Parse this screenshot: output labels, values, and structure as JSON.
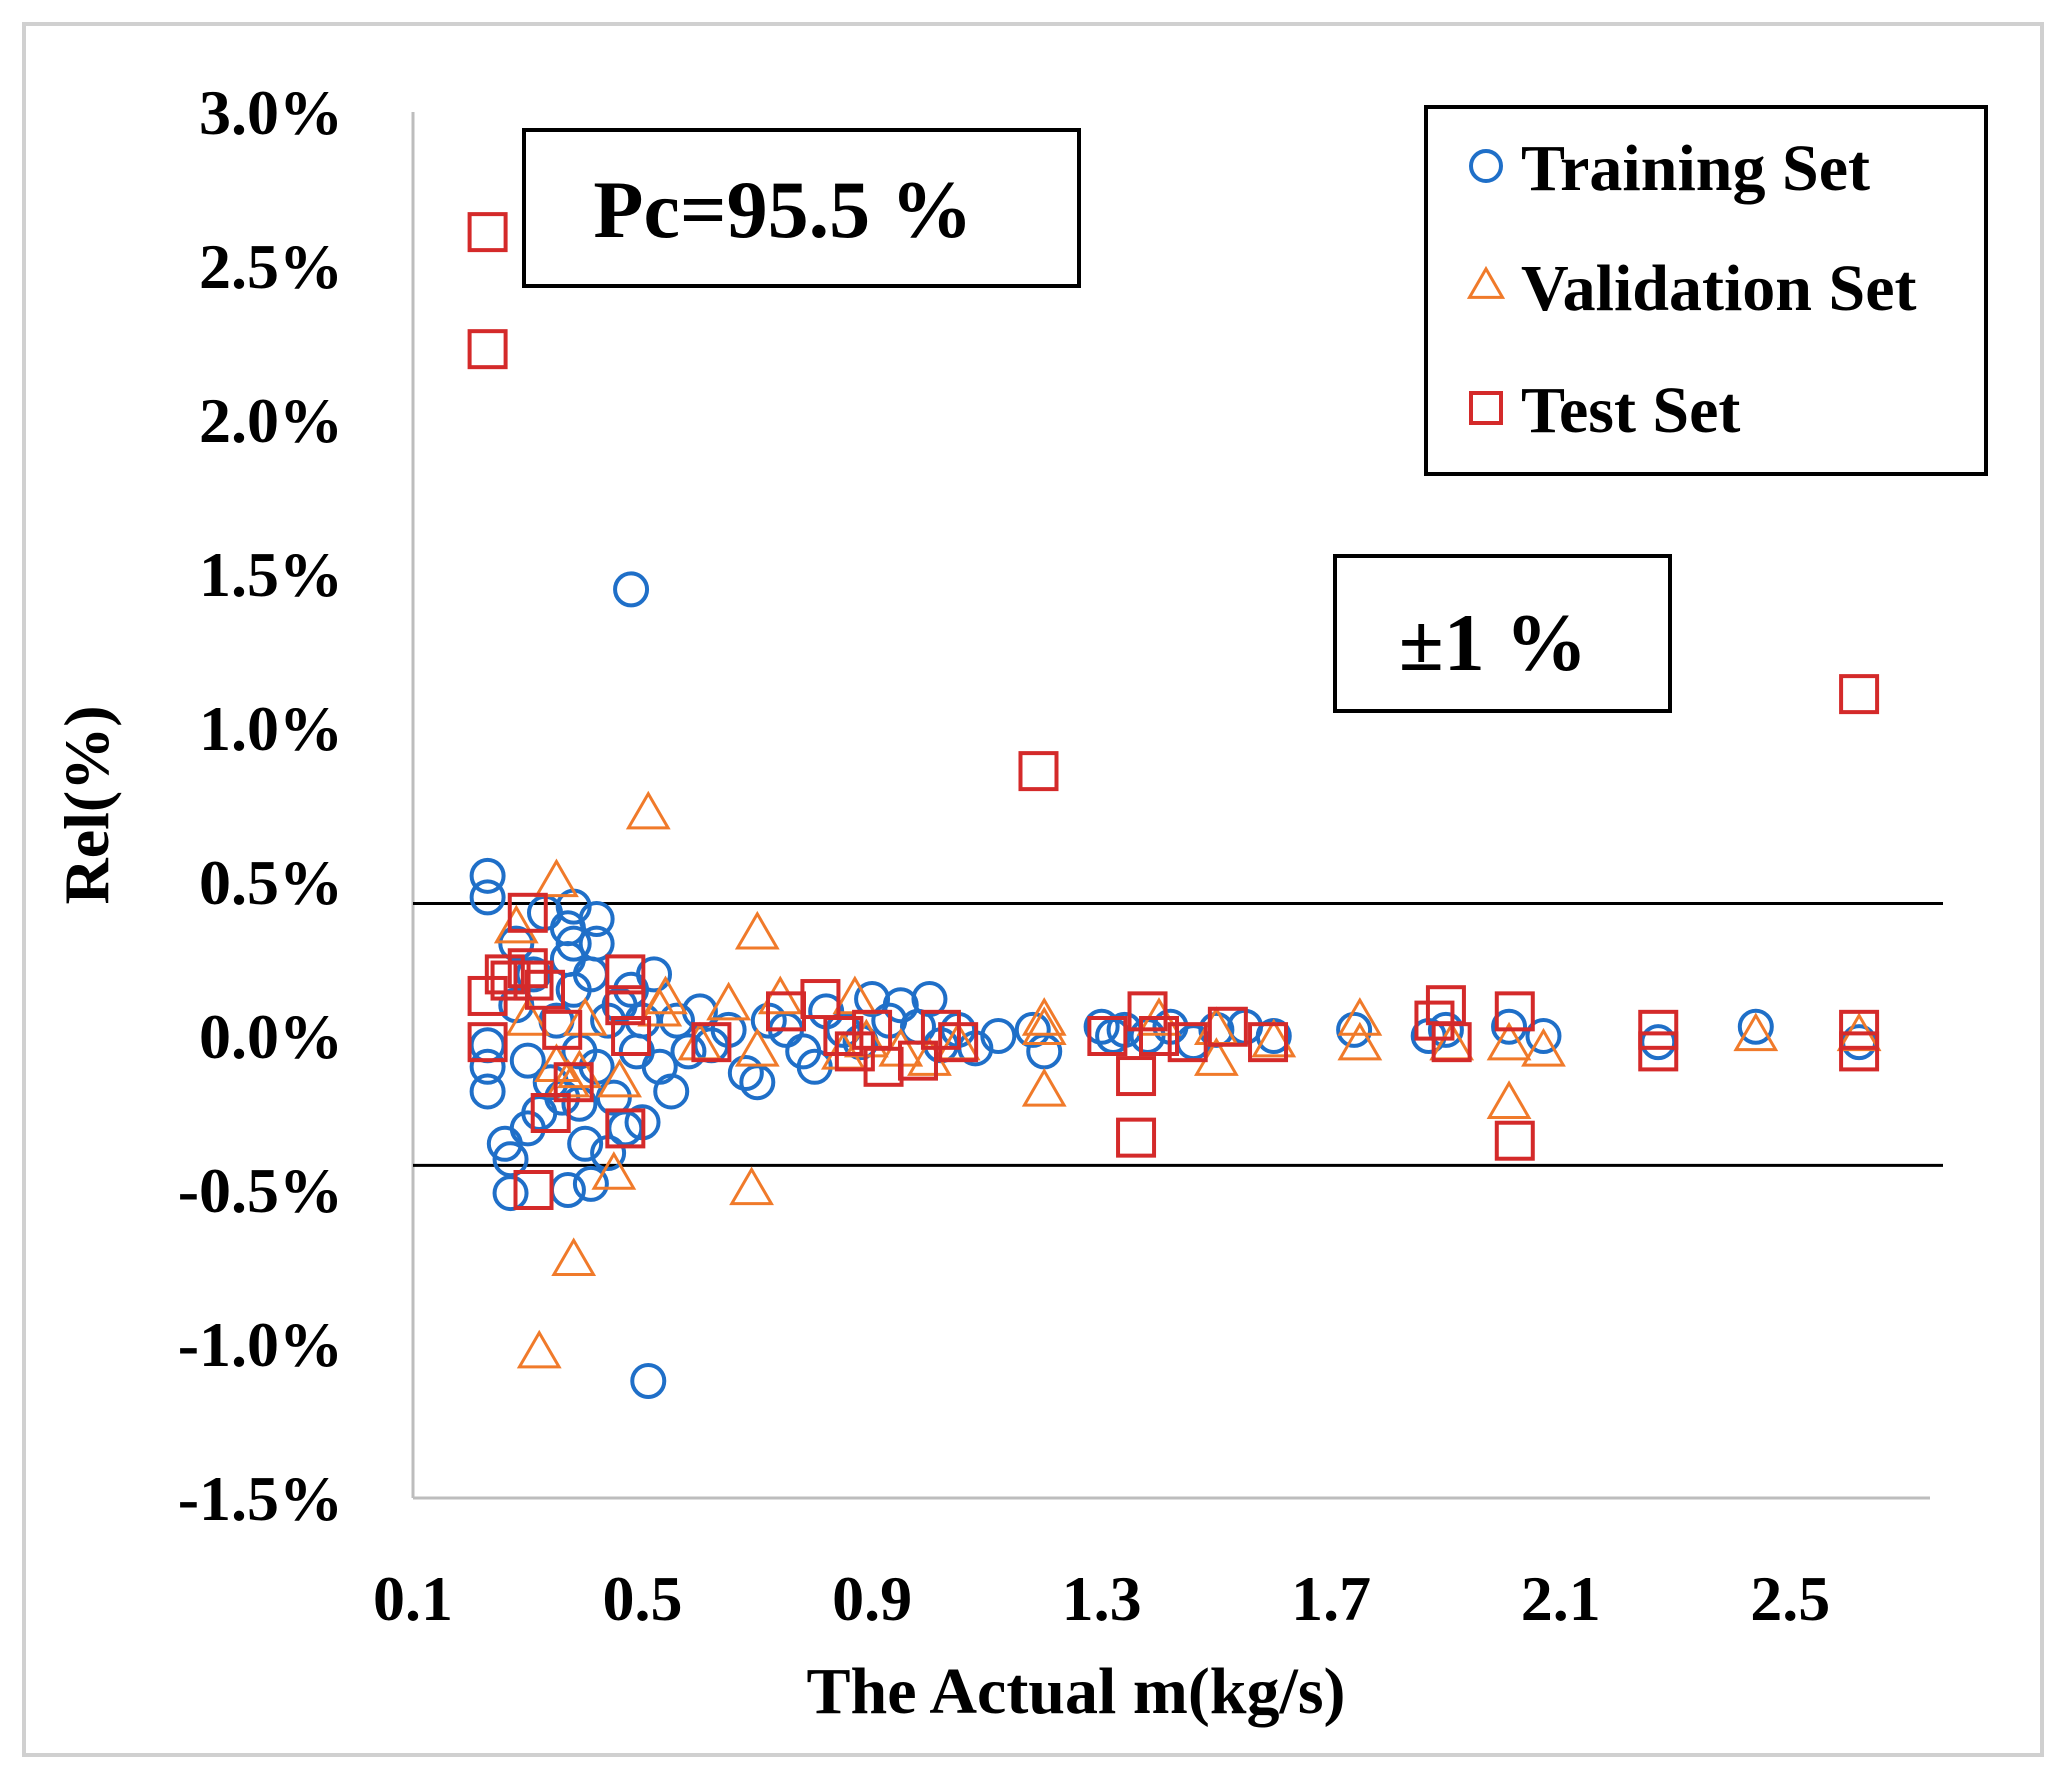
{
  "chart_data": {
    "type": "scatter",
    "ylabel": "Rel(%)",
    "xlabel": "The Actual m(kg/s)",
    "xlim": [
      0.1,
      2.7
    ],
    "ylim": [
      -1.5,
      3.0
    ],
    "x_ticks": [
      0.1,
      0.5,
      0.9,
      1.3,
      1.7,
      2.1,
      2.5
    ],
    "x_tick_labels": [
      "0.1",
      "0.5",
      "0.9",
      "1.3",
      "1.7",
      "2.1",
      "2.5"
    ],
    "y_ticks": [
      3.0,
      2.5,
      2.0,
      1.5,
      1.0,
      0.5,
      0.0,
      -0.5,
      -1.0,
      -1.5
    ],
    "y_tick_labels": [
      "3.0%",
      "2.5%",
      "2.0%",
      "1.5%",
      "1.0%",
      "0.5%",
      "0.0%",
      "-0.5%",
      "-1.0%",
      "-1.5%"
    ],
    "grid": false,
    "legend_position": "top-right",
    "reference_lines": [
      0.43,
      -0.42
    ],
    "annotations": {
      "pc": "Pc=95.5 %",
      "band": "±1 %"
    },
    "series": [
      {
        "name": "Training Set",
        "marker": "circle",
        "color": "#1f6fc8",
        "points": [
          [
            0.23,
            0.52
          ],
          [
            0.23,
            0.45
          ],
          [
            0.23,
            -0.03
          ],
          [
            0.23,
            -0.1
          ],
          [
            0.23,
            -0.18
          ],
          [
            0.26,
            -0.35
          ],
          [
            0.27,
            -0.4
          ],
          [
            0.27,
            -0.51
          ],
          [
            0.28,
            0.3
          ],
          [
            0.28,
            0.1
          ],
          [
            0.3,
            -0.08
          ],
          [
            0.3,
            -0.3
          ],
          [
            0.31,
            0.2
          ],
          [
            0.32,
            -0.25
          ],
          [
            0.33,
            0.4
          ],
          [
            0.34,
            -0.15
          ],
          [
            0.35,
            0.05
          ],
          [
            0.36,
            -0.2
          ],
          [
            0.37,
            0.35
          ],
          [
            0.37,
            0.25
          ],
          [
            0.37,
            -0.5
          ],
          [
            0.38,
            0.42
          ],
          [
            0.38,
            0.3
          ],
          [
            0.38,
            0.15
          ],
          [
            0.39,
            -0.05
          ],
          [
            0.39,
            -0.22
          ],
          [
            0.4,
            -0.35
          ],
          [
            0.41,
            0.2
          ],
          [
            0.41,
            -0.48
          ],
          [
            0.42,
            0.38
          ],
          [
            0.42,
            0.3
          ],
          [
            0.42,
            -0.1
          ],
          [
            0.44,
            0.05
          ],
          [
            0.44,
            -0.38
          ],
          [
            0.45,
            -0.2
          ],
          [
            0.46,
            0.1
          ],
          [
            0.47,
            -0.3
          ],
          [
            0.48,
            1.45
          ],
          [
            0.48,
            0.15
          ],
          [
            0.49,
            -0.05
          ],
          [
            0.5,
            0.05
          ],
          [
            0.5,
            -0.28
          ],
          [
            0.51,
            -1.12
          ],
          [
            0.52,
            0.2
          ],
          [
            0.53,
            -0.1
          ],
          [
            0.55,
            -0.18
          ],
          [
            0.56,
            0.05
          ],
          [
            0.58,
            -0.05
          ],
          [
            0.6,
            0.08
          ],
          [
            0.62,
            -0.03
          ],
          [
            0.65,
            0.02
          ],
          [
            0.68,
            -0.12
          ],
          [
            0.7,
            -0.15
          ],
          [
            0.72,
            0.05
          ],
          [
            0.75,
            0.02
          ],
          [
            0.78,
            -0.05
          ],
          [
            0.8,
            -0.1
          ],
          [
            0.82,
            0.08
          ],
          [
            0.85,
            0.02
          ],
          [
            0.88,
            -0.02
          ],
          [
            0.9,
            0.12
          ],
          [
            0.93,
            0.05
          ],
          [
            0.95,
            0.1
          ],
          [
            0.98,
            0.03
          ],
          [
            1.0,
            0.12
          ],
          [
            1.02,
            -0.03
          ],
          [
            1.05,
            0.02
          ],
          [
            1.08,
            -0.04
          ],
          [
            1.12,
            0.0
          ],
          [
            1.18,
            0.02
          ],
          [
            1.2,
            -0.05
          ],
          [
            1.3,
            0.03
          ],
          [
            1.32,
            0.0
          ],
          [
            1.34,
            0.02
          ],
          [
            1.38,
            0.0
          ],
          [
            1.42,
            0.03
          ],
          [
            1.46,
            -0.02
          ],
          [
            1.5,
            0.02
          ],
          [
            1.55,
            0.03
          ],
          [
            1.6,
            0.0
          ],
          [
            1.74,
            0.02
          ],
          [
            1.87,
            0.0
          ],
          [
            1.9,
            0.02
          ],
          [
            2.01,
            0.03
          ],
          [
            2.07,
            0.0
          ],
          [
            2.27,
            -0.02
          ],
          [
            2.44,
            0.03
          ],
          [
            2.62,
            -0.02
          ]
        ]
      },
      {
        "name": "Validation Set",
        "marker": "triangle",
        "color": "#f07a2a",
        "points": [
          [
            0.28,
            0.35
          ],
          [
            0.3,
            0.05
          ],
          [
            0.32,
            -1.03
          ],
          [
            0.35,
            0.5
          ],
          [
            0.35,
            -0.1
          ],
          [
            0.37,
            -0.15
          ],
          [
            0.38,
            -0.73
          ],
          [
            0.39,
            -0.12
          ],
          [
            0.4,
            0.05
          ],
          [
            0.45,
            -0.45
          ],
          [
            0.46,
            -0.15
          ],
          [
            0.51,
            0.72
          ],
          [
            0.53,
            0.08
          ],
          [
            0.54,
            0.12
          ],
          [
            0.6,
            -0.03
          ],
          [
            0.65,
            0.1
          ],
          [
            0.69,
            -0.5
          ],
          [
            0.7,
            0.33
          ],
          [
            0.7,
            -0.05
          ],
          [
            0.74,
            0.12
          ],
          [
            0.85,
            -0.06
          ],
          [
            0.87,
            0.12
          ],
          [
            0.89,
            -0.02
          ],
          [
            0.95,
            -0.05
          ],
          [
            1.0,
            -0.08
          ],
          [
            1.05,
            -0.03
          ],
          [
            1.2,
            -0.18
          ],
          [
            1.2,
            0.05
          ],
          [
            1.2,
            0.02
          ],
          [
            1.4,
            0.05
          ],
          [
            1.5,
            -0.08
          ],
          [
            1.5,
            0.02
          ],
          [
            1.6,
            -0.02
          ],
          [
            1.75,
            0.05
          ],
          [
            1.75,
            -0.03
          ],
          [
            1.91,
            -0.03
          ],
          [
            2.01,
            -0.22
          ],
          [
            2.01,
            -0.03
          ],
          [
            2.07,
            -0.05
          ],
          [
            2.44,
            0.0
          ],
          [
            2.62,
            0.0
          ]
        ]
      },
      {
        "name": "Test Set",
        "marker": "square",
        "color": "#d42a2a",
        "points": [
          [
            0.23,
            2.61
          ],
          [
            0.23,
            2.23
          ],
          [
            0.23,
            0.13
          ],
          [
            0.23,
            -0.02
          ],
          [
            0.26,
            0.2
          ],
          [
            0.27,
            0.18
          ],
          [
            0.3,
            0.4
          ],
          [
            0.3,
            0.22
          ],
          [
            0.31,
            0.18
          ],
          [
            0.31,
            -0.5
          ],
          [
            0.33,
            0.15
          ],
          [
            0.34,
            -0.25
          ],
          [
            0.36,
            0.02
          ],
          [
            0.38,
            -0.15
          ],
          [
            0.47,
            0.2
          ],
          [
            0.47,
            0.1
          ],
          [
            0.47,
            -0.3
          ],
          [
            0.48,
            0.0
          ],
          [
            0.62,
            -0.02
          ],
          [
            0.75,
            0.08
          ],
          [
            0.81,
            0.12
          ],
          [
            0.85,
            0.0
          ],
          [
            0.87,
            -0.05
          ],
          [
            0.9,
            0.02
          ],
          [
            0.92,
            -0.1
          ],
          [
            0.98,
            -0.08
          ],
          [
            1.02,
            0.02
          ],
          [
            1.05,
            -0.02
          ],
          [
            1.19,
            0.86
          ],
          [
            1.31,
            0.0
          ],
          [
            1.36,
            -0.13
          ],
          [
            1.36,
            -0.33
          ],
          [
            1.38,
            0.08
          ],
          [
            1.4,
            0.0
          ],
          [
            1.45,
            -0.02
          ],
          [
            1.52,
            0.03
          ],
          [
            1.59,
            -0.02
          ],
          [
            1.88,
            0.05
          ],
          [
            1.9,
            0.1
          ],
          [
            1.91,
            -0.02
          ],
          [
            2.02,
            0.08
          ],
          [
            2.02,
            -0.34
          ],
          [
            2.27,
            0.02
          ],
          [
            2.27,
            -0.05
          ],
          [
            2.62,
            0.02
          ],
          [
            2.62,
            -0.05
          ],
          [
            2.62,
            1.11
          ]
        ]
      }
    ]
  }
}
